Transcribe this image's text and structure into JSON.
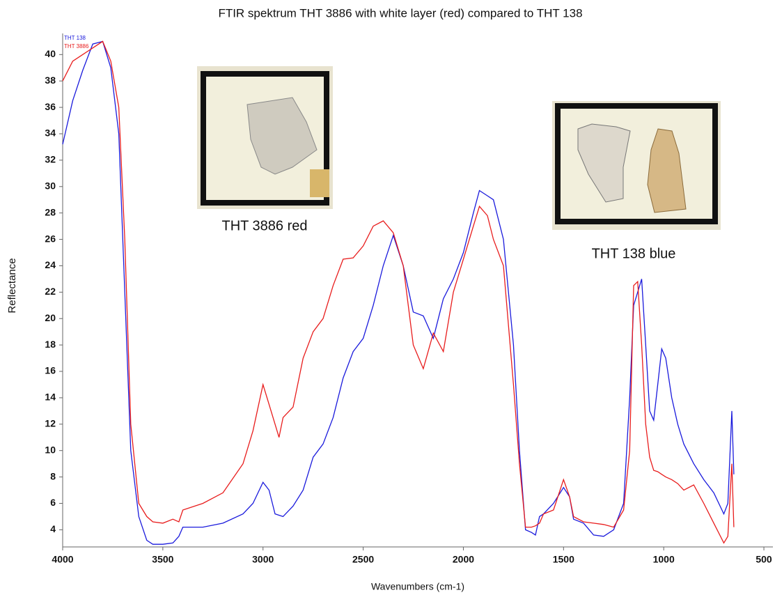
{
  "chart_data": {
    "type": "line",
    "title": "FTIR spektrum THT 3886 with white layer (red) compared to THT 138",
    "x_label": "Wavenumbers (cm-1)",
    "y_label": "Reflectance",
    "annotations": [
      "THT 3886 red",
      "THT 138 blue"
    ],
    "xlim": [
      4000,
      455
    ],
    "ylim": [
      2.7,
      41.6
    ],
    "xticks": [
      4000,
      3500,
      3000,
      2500,
      2000,
      1500,
      1000,
      500
    ],
    "yticks": [
      4,
      6,
      8,
      10,
      12,
      14,
      16,
      18,
      20,
      22,
      24,
      26,
      28,
      30,
      32,
      34,
      36,
      38,
      40
    ],
    "x": [
      4000,
      3950,
      3900,
      3850,
      3800,
      3760,
      3720,
      3690,
      3660,
      3620,
      3580,
      3550,
      3500,
      3450,
      3420,
      3400,
      3300,
      3200,
      3100,
      3050,
      3000,
      2970,
      2940,
      2920,
      2900,
      2850,
      2800,
      2750,
      2700,
      2650,
      2600,
      2550,
      2500,
      2450,
      2400,
      2350,
      2300,
      2250,
      2200,
      2150,
      2100,
      2050,
      2000,
      1950,
      1920,
      1880,
      1850,
      1800,
      1750,
      1720,
      1690,
      1660,
      1640,
      1620,
      1600,
      1550,
      1500,
      1470,
      1450,
      1400,
      1350,
      1300,
      1250,
      1200,
      1170,
      1150,
      1130,
      1110,
      1090,
      1070,
      1050,
      1030,
      1010,
      990,
      960,
      930,
      900,
      850,
      800,
      750,
      700,
      680,
      660,
      650
    ],
    "series": [
      {
        "name": "THT 138",
        "color": "#1a1adc",
        "values": [
          33.2,
          36.5,
          38.8,
          40.8,
          41,
          39,
          34,
          22,
          10,
          5,
          3.2,
          2.9,
          2.9,
          3,
          3.5,
          4.2,
          4.2,
          4.5,
          5.2,
          6,
          7.6,
          7,
          5.2,
          5.1,
          5,
          5.8,
          7,
          9.5,
          10.5,
          12.5,
          15.5,
          17.5,
          18.5,
          21,
          24,
          26.3,
          24,
          20.5,
          20.2,
          18.5,
          21.5,
          23,
          25,
          28,
          29.7,
          29.3,
          29,
          26,
          18,
          10,
          4,
          3.8,
          3.6,
          5,
          5.2,
          6,
          7.2,
          6.5,
          4.8,
          4.5,
          3.6,
          3.5,
          4,
          6,
          14,
          21,
          22,
          23,
          18,
          13,
          12.3,
          15,
          17.7,
          17,
          14,
          12,
          10.5,
          9,
          7.8,
          6.8,
          5.2,
          6,
          13,
          8.2
        ]
      },
      {
        "name": "THT 3886",
        "color": "#e81c1c",
        "values": [
          38,
          39.5,
          40,
          40.5,
          41,
          39.5,
          36,
          26,
          12,
          6,
          5,
          4.6,
          4.5,
          4.8,
          4.6,
          5.5,
          6,
          6.8,
          9,
          11.5,
          15,
          13.5,
          12,
          11,
          12.5,
          13.3,
          17,
          19,
          20,
          22.5,
          24.5,
          24.6,
          25.5,
          27,
          27.4,
          26.5,
          24,
          18,
          16.2,
          18.9,
          17.5,
          22,
          24.5,
          27,
          28.5,
          27.8,
          26,
          24,
          15,
          9,
          4.2,
          4.2,
          4.3,
          4.5,
          5.2,
          5.5,
          7.8,
          6.5,
          5,
          4.6,
          4.5,
          4.4,
          4.2,
          5.5,
          10,
          22.5,
          22.8,
          18,
          12,
          9.5,
          8.5,
          8.4,
          8.2,
          8,
          7.8,
          7.5,
          7,
          7.4,
          6,
          4.5,
          3,
          3.5,
          9,
          4.2
        ]
      }
    ]
  }
}
